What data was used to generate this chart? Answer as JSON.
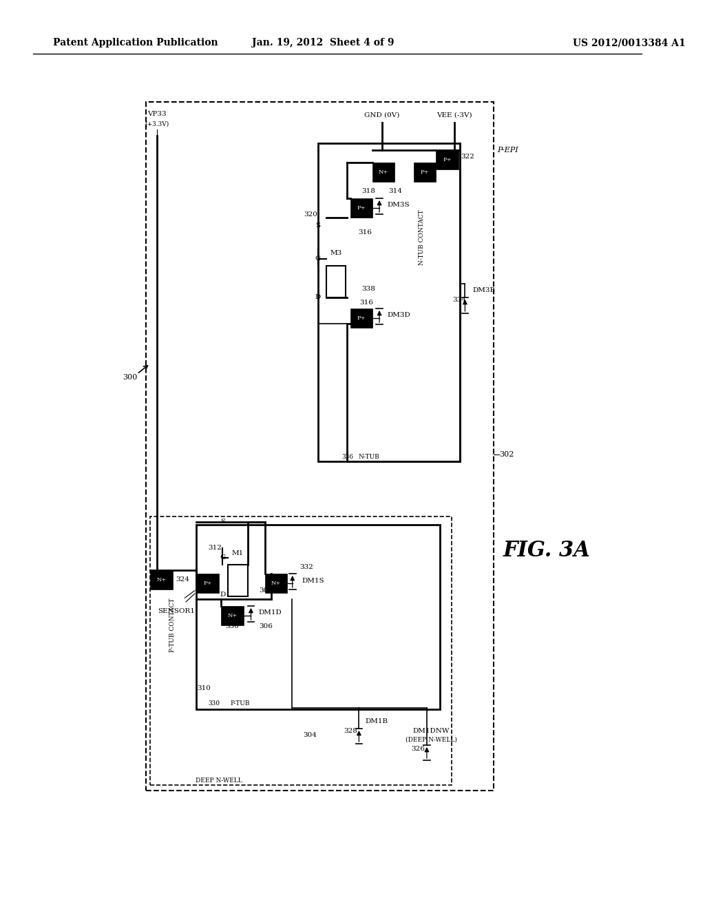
{
  "bg_color": "#ffffff",
  "header_left": "Patent Application Publication",
  "header_center": "Jan. 19, 2012  Sheet 4 of 9",
  "header_right": "US 2012/0013384 A1",
  "fig_label": "FIG. 3A"
}
